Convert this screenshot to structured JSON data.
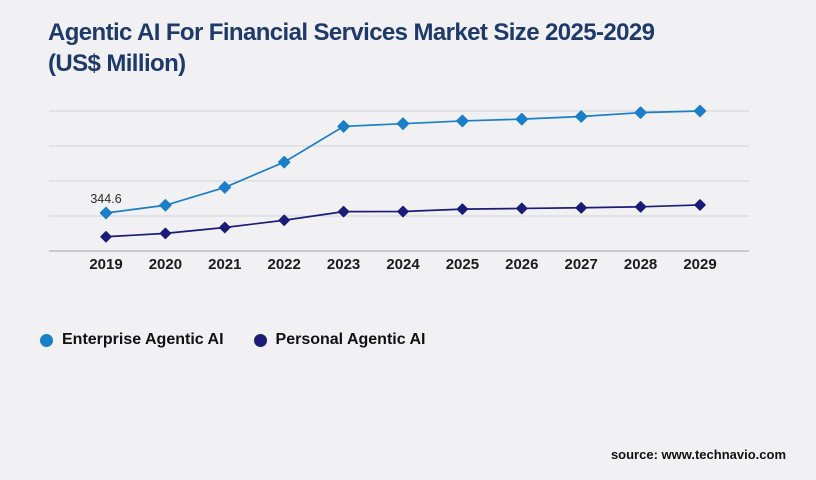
{
  "colors": {
    "background": "#f1f1f4",
    "title": "#1e3a69",
    "gridline": "#d9d9dd",
    "axis_line": "#b2b2b8",
    "tick_label": "#1b1b1b",
    "data_label": "#2b2b2b",
    "legend_text": "#111111",
    "source_text": "#111111"
  },
  "chart_data": {
    "type": "line",
    "title": "Agentic AI For Financial Services Market Size 2025-2029 (US$ Million)",
    "title_display_lines": {
      "0": "Agentic AI For Financial Services Market Size 2025-2029",
      "1": "(US$ Million)"
    },
    "xlabel": "",
    "ylabel": "US$ Million",
    "categories": [
      "2019",
      "2020",
      "2021",
      "2022",
      "2023",
      "2024",
      "2025",
      "2026",
      "2027",
      "2028",
      "2029"
    ],
    "series": [
      {
        "name": "Enterprise Agentic AI",
        "color": "#1b7ec9",
        "marker": "diamond",
        "values": [
          344.6,
          415,
          577,
          806,
          1130,
          1155,
          1180,
          1196,
          1220,
          1255,
          1270
        ]
      },
      {
        "name": "Personal Agentic AI",
        "color": "#1b1b78",
        "marker": "diamond",
        "values": [
          129,
          160,
          213,
          279,
          357,
          358,
          380,
          386,
          392,
          401,
          418
        ]
      }
    ],
    "data_labels": [
      {
        "series": "Enterprise Agentic AI",
        "category": "2019",
        "text": "344.6"
      }
    ],
    "ylim": [
      0,
      1270
    ],
    "y_axis_tick_labels_visible": false,
    "gridlines": {
      "horizontal": 5,
      "vertical": 0
    },
    "legend_position": "bottom-left"
  },
  "footer": {
    "source": "source: www.technavio.com"
  }
}
